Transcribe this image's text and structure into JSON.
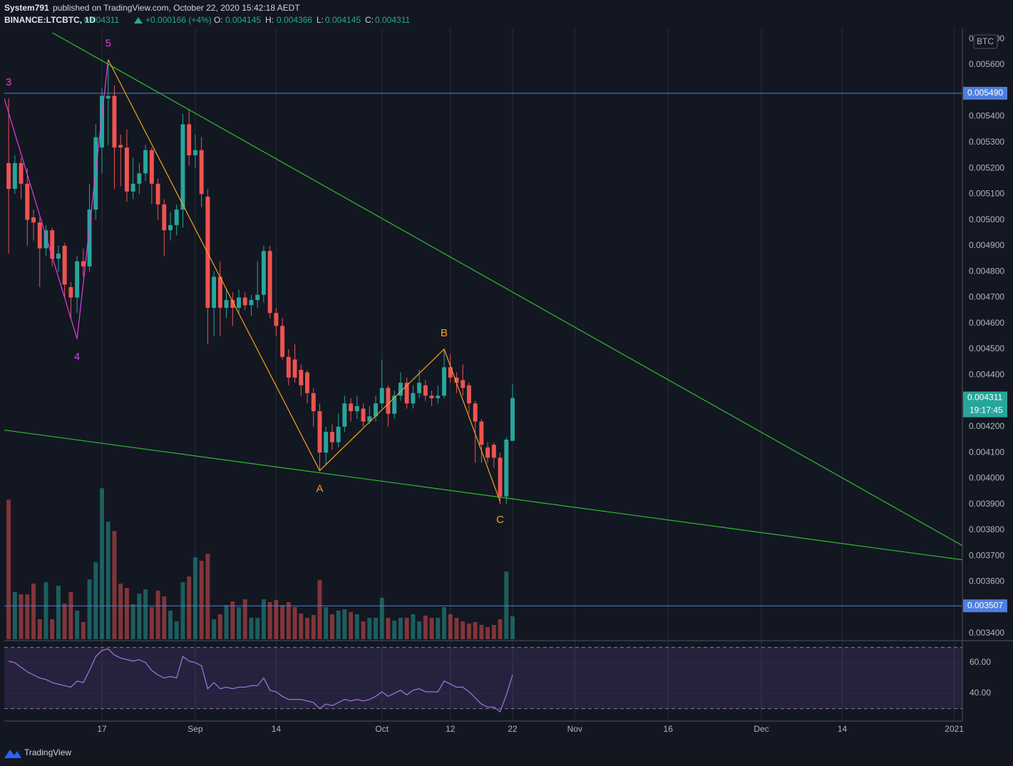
{
  "header": {
    "author": "System791",
    "published": "published on TradingView.com, October 22, 2020 15:42:18 AEDT",
    "symbol": "BINANCE:LTCBTC, 1D",
    "change": "+0.000166 (+4%)",
    "ohlc_labels": [
      "O:",
      "H:",
      "L:",
      "C:"
    ]
  },
  "footer": {
    "brand": "TradingView"
  },
  "chart_data": {
    "type": "candlestick",
    "currency": "BTC",
    "up_color": "#26a69a",
    "down_color": "#ef5350",
    "open": [
      0.00522,
      0.00512,
      0.00522,
      0.00514,
      0.00501,
      0.00499,
      0.00489,
      0.00496,
      0.00485,
      0.0049,
      0.00474,
      0.0047,
      0.00484,
      0.00482,
      0.00504,
      0.00528,
      0.00547,
      0.00548,
      0.00529,
      0.00528,
      0.00511,
      0.00514,
      0.00518,
      0.00527,
      0.00514,
      0.00506,
      0.00496,
      0.00498,
      0.00504,
      0.00537,
      0.00525,
      0.00527,
      0.00509,
      0.00466,
      0.00478,
      0.00466,
      0.00469,
      0.00466,
      0.0047,
      0.00467,
      0.00469,
      0.00471,
      0.00488,
      0.00464,
      0.00459,
      0.00447,
      0.00446,
      0.00442,
      0.00441,
      0.00433,
      0.00426,
      0.0041,
      0.00418,
      0.00414,
      0.0042,
      0.00429,
      0.00426,
      0.00427,
      0.00422,
      0.00424,
      0.00429,
      0.00435,
      0.00425,
      0.00432,
      0.00437,
      0.00429,
      0.00433,
      0.00436,
      0.00432,
      0.00431,
      0.00432,
      0.00443,
      0.00439,
      0.00438,
      0.00436,
      0.00429,
      0.00422,
      0.00412,
      0.00413,
      0.00408,
      0.00393,
      0.004145
    ],
    "high": [
      0.00547,
      0.00525,
      0.00524,
      0.0052,
      0.00504,
      0.00501,
      0.00498,
      0.00497,
      0.0049,
      0.00491,
      0.00476,
      0.00486,
      0.00489,
      0.00514,
      0.00537,
      0.00551,
      0.00562,
      0.00552,
      0.00533,
      0.00535,
      0.00524,
      0.00522,
      0.00529,
      0.00528,
      0.00516,
      0.00508,
      0.00503,
      0.00506,
      0.00541,
      0.00543,
      0.00533,
      0.00532,
      0.00512,
      0.0048,
      0.00484,
      0.00473,
      0.00472,
      0.00473,
      0.00472,
      0.00471,
      0.00484,
      0.0049,
      0.0049,
      0.00466,
      0.00462,
      0.0045,
      0.00452,
      0.00444,
      0.00442,
      0.00435,
      0.00429,
      0.0042,
      0.00421,
      0.00425,
      0.00432,
      0.00431,
      0.00432,
      0.00429,
      0.00428,
      0.00432,
      0.00446,
      0.00436,
      0.00434,
      0.00441,
      0.00439,
      0.00436,
      0.00442,
      0.00438,
      0.00434,
      0.00436,
      0.0045,
      0.00448,
      0.00441,
      0.00444,
      0.00437,
      0.0043,
      0.00423,
      0.00414,
      0.00414,
      0.0041,
      0.00416,
      0.004366
    ],
    "low": [
      0.00487,
      0.0051,
      0.00508,
      0.0049,
      0.00492,
      0.00474,
      0.00486,
      0.00482,
      0.0048,
      0.0047,
      0.00462,
      0.00464,
      0.00478,
      0.0048,
      0.005,
      0.00518,
      0.00529,
      0.00512,
      0.00513,
      0.00507,
      0.00508,
      0.0051,
      0.00515,
      0.00506,
      0.005,
      0.00486,
      0.00492,
      0.00494,
      0.00497,
      0.00521,
      0.0052,
      0.00505,
      0.00452,
      0.00455,
      0.00455,
      0.00462,
      0.00459,
      0.00464,
      0.00465,
      0.00463,
      0.00466,
      0.00468,
      0.00462,
      0.00455,
      0.00446,
      0.00436,
      0.00437,
      0.00432,
      0.00429,
      0.0042,
      0.00403,
      0.00405,
      0.00411,
      0.00412,
      0.00418,
      0.00422,
      0.00423,
      0.0042,
      0.00421,
      0.00422,
      0.00427,
      0.0042,
      0.00423,
      0.0043,
      0.00427,
      0.00427,
      0.00431,
      0.0043,
      0.00428,
      0.00429,
      0.00431,
      0.00437,
      0.00433,
      0.00432,
      0.00425,
      0.00406,
      0.00406,
      0.00406,
      0.00404,
      0.0039,
      0.0039,
      0.004145
    ],
    "close": [
      0.00512,
      0.00522,
      0.00514,
      0.005,
      0.00499,
      0.00489,
      0.00496,
      0.00485,
      0.00487,
      0.00475,
      0.0047,
      0.00484,
      0.00482,
      0.00504,
      0.00532,
      0.00548,
      0.00548,
      0.00528,
      0.00528,
      0.00511,
      0.00514,
      0.00518,
      0.00527,
      0.00514,
      0.00506,
      0.00496,
      0.00498,
      0.00504,
      0.00537,
      0.00525,
      0.00527,
      0.0051,
      0.00466,
      0.00478,
      0.00466,
      0.00469,
      0.00466,
      0.0047,
      0.00467,
      0.00469,
      0.00471,
      0.00488,
      0.00464,
      0.00459,
      0.00447,
      0.00439,
      0.00439,
      0.00436,
      0.00433,
      0.00426,
      0.0041,
      0.00418,
      0.00414,
      0.0042,
      0.00429,
      0.00426,
      0.00428,
      0.00422,
      0.00424,
      0.00429,
      0.00435,
      0.00425,
      0.00432,
      0.00437,
      0.00429,
      0.00433,
      0.00437,
      0.00432,
      0.00431,
      0.00432,
      0.00443,
      0.00439,
      0.00437,
      0.00435,
      0.00429,
      0.00422,
      0.00413,
      0.00408,
      0.00408,
      0.00393,
      0.00415,
      0.004311
    ],
    "volume": [
      196,
      66,
      63,
      63,
      78,
      28,
      80,
      28,
      75,
      50,
      66,
      40,
      24,
      84,
      108,
      212,
      165,
      152,
      78,
      72,
      49,
      64,
      70,
      45,
      68,
      60,
      40,
      25,
      80,
      88,
      115,
      110,
      120,
      28,
      35,
      48,
      53,
      45,
      56,
      30,
      30,
      56,
      52,
      55,
      48,
      52,
      45,
      36,
      30,
      34,
      83,
      45,
      35,
      40,
      42,
      38,
      35,
      25,
      30,
      30,
      58,
      30,
      26,
      30,
      30,
      35,
      25,
      33,
      30,
      30,
      45,
      35,
      30,
      25,
      22,
      24,
      20,
      17,
      20,
      28,
      95,
      32
    ],
    "volume_ylim": [
      0,
      230
    ],
    "rsi": [
      61,
      60,
      57,
      54,
      52,
      50,
      49,
      47,
      46,
      45,
      44,
      48,
      47,
      55,
      64,
      68,
      69,
      65,
      63,
      62,
      61,
      62,
      60,
      55,
      52,
      50,
      51,
      50,
      64,
      61,
      60,
      58,
      43,
      47,
      43,
      44,
      43,
      44,
      44,
      45,
      45,
      50,
      42,
      41,
      38,
      36,
      36,
      36,
      35,
      34,
      30,
      33,
      32,
      34,
      36,
      35,
      36,
      35,
      36,
      38,
      41,
      38,
      40,
      42,
      39,
      42,
      43,
      41,
      41,
      41,
      48,
      46,
      44,
      44,
      41,
      37,
      33,
      31,
      31,
      28,
      39,
      52
    ],
    "rsi_ylim": [
      22.8,
      73
    ],
    "rsi_yticks": [
      {
        "value": 60,
        "label": "60.00"
      },
      {
        "value": 40,
        "label": "40.00"
      }
    ],
    "rsi_bands": [
      70,
      30
    ],
    "rsi_color": "#9c6fd6",
    "xlim": [
      -0.7,
      153.3
    ],
    "xticks": [
      {
        "value": 15,
        "label": "17"
      },
      {
        "value": 30,
        "label": "Sep"
      },
      {
        "value": 43,
        "label": "14"
      },
      {
        "value": 60,
        "label": "Oct"
      },
      {
        "value": 71,
        "label": "12"
      },
      {
        "value": 81,
        "label": "22"
      },
      {
        "value": 91,
        "label": "Nov"
      },
      {
        "value": 106,
        "label": "16"
      },
      {
        "value": 121,
        "label": "Dec"
      },
      {
        "value": 134,
        "label": "14"
      },
      {
        "value": 152,
        "label": "2021"
      }
    ],
    "ylim": [
      0.003378,
      0.005724
    ],
    "yticks": [
      {
        "value": 0.0034,
        "label": "0.003400"
      },
      {
        "value": 0.0035,
        "label": "0.003500"
      },
      {
        "value": 0.0036,
        "label": "0.003600"
      },
      {
        "value": 0.0037,
        "label": "0.003700"
      },
      {
        "value": 0.0038,
        "label": "0.003800"
      },
      {
        "value": 0.0039,
        "label": "0.003900"
      },
      {
        "value": 0.004,
        "label": "0.004000"
      },
      {
        "value": 0.0041,
        "label": "0.004100"
      },
      {
        "value": 0.0042,
        "label": "0.004200"
      },
      {
        "value": 0.0043,
        "label": "0.004300"
      },
      {
        "value": 0.0044,
        "label": "0.004400"
      },
      {
        "value": 0.0045,
        "label": "0.004500"
      },
      {
        "value": 0.0046,
        "label": "0.004600"
      },
      {
        "value": 0.0047,
        "label": "0.004700"
      },
      {
        "value": 0.0048,
        "label": "0.004800"
      },
      {
        "value": 0.0049,
        "label": "0.004900"
      },
      {
        "value": 0.005,
        "label": "0.005000"
      },
      {
        "value": 0.0051,
        "label": "0.005100"
      },
      {
        "value": 0.0052,
        "label": "0.005200"
      },
      {
        "value": 0.0053,
        "label": "0.005300"
      },
      {
        "value": 0.0054,
        "label": "0.005400"
      },
      {
        "value": 0.0055,
        "label": "0.005500"
      },
      {
        "value": 0.0056,
        "label": "0.005600"
      },
      {
        "value": 0.0057,
        "label": "0.005700"
      }
    ],
    "grid": true,
    "hlines": [
      {
        "value": 0.00549,
        "label": "0.005490"
      },
      {
        "value": 0.003507,
        "label": "0.003507"
      }
    ],
    "hline_color": "#4d7fe0",
    "countdown": "19:17:45",
    "drawings": [
      {
        "color": "#2ebd2e",
        "points": [
          [
            6.6,
            0.00573
          ],
          [
            153.3,
            0.00374
          ]
        ]
      },
      {
        "color": "#2ebd2e",
        "points": [
          [
            -0.7,
            0.004187
          ],
          [
            153.3,
            0.003685
          ]
        ]
      },
      {
        "color": "#e040e0",
        "points": [
          [
            -0.7,
            0.00547
          ],
          [
            11,
            0.00454
          ],
          [
            16,
            0.00562
          ]
        ],
        "labels": [
          "3",
          "4",
          "5"
        ]
      },
      {
        "color": "#f7a21b",
        "points": [
          [
            16,
            0.00562
          ],
          [
            50,
            0.00403
          ],
          [
            70,
            0.0045
          ],
          [
            79,
            0.00391
          ]
        ],
        "labels": [
          null,
          "A",
          "B",
          "C"
        ]
      }
    ]
  }
}
